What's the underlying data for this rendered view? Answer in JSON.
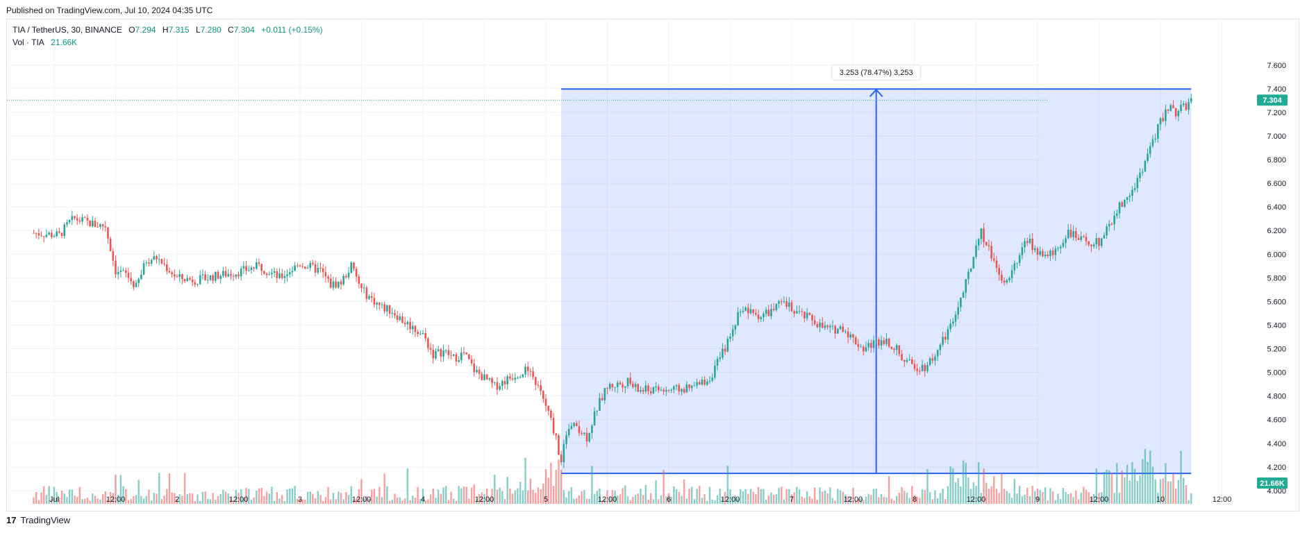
{
  "header": {
    "published": "Published on TradingView.com, Jul 10, 2024 04:35 UTC"
  },
  "legend": {
    "symbol": "TIA / TetherUS, 30, BINANCE",
    "o_label": "O",
    "o": "7.294",
    "h_label": "H",
    "h": "7.315",
    "l_label": "L",
    "l": "7.280",
    "c_label": "C",
    "c": "7.304",
    "change": "+0.011 (+0.15%)",
    "vol_label": "Vol · TIA",
    "vol": "21.66K"
  },
  "footer": {
    "brand": "TradingView",
    "logo_glyph": "17"
  },
  "colors": {
    "up": "#26a69a",
    "down": "#ef5350",
    "range_fill": "#2962ff",
    "range_line": "#2962ff",
    "last_price": "#22ab94"
  },
  "chart_data": {
    "type": "candlestick",
    "symbol": "TIA / TetherUS",
    "interval": "30",
    "exchange": "BINANCE",
    "ylim": [
      3.92,
      7.68
    ],
    "y_ticks": [
      "7.600",
      "7.400",
      "7.200",
      "7.000",
      "6.800",
      "6.600",
      "6.400",
      "6.200",
      "6.000",
      "5.800",
      "5.600",
      "5.400",
      "5.200",
      "5.000",
      "4.800",
      "4.600",
      "4.400",
      "4.200",
      "4.000"
    ],
    "x_ticks": [
      "Jul",
      "12:00",
      "2",
      "12:00",
      "3",
      "12:00",
      "4",
      "12:00",
      "5",
      "12:00",
      "6",
      "12:00",
      "7",
      "12:00",
      "8",
      "12:00",
      "9",
      "12:00",
      "10",
      "12:00"
    ],
    "last_price": "7.304",
    "last_volume": "21.66K",
    "price_range_measure": {
      "label": "3.253 (78.47%) 3,253",
      "from_price": 4.145,
      "to_price": 7.398,
      "from_x": "Jul 5 03:00",
      "to_x": "Jul 10 06:00"
    },
    "close_path": [
      [
        "Jun 30 20:00",
        6.18
      ],
      [
        "Jul 1 01:00",
        6.16
      ],
      [
        "Jul 1 03:00",
        6.27
      ],
      [
        "Jul 1 04:00",
        6.3
      ],
      [
        "Jul 1 08:00",
        6.25
      ],
      [
        "Jul 1 10:00",
        6.24
      ],
      [
        "Jul 1 12:00",
        5.86
      ],
      [
        "Jul 1 14:00",
        5.83
      ],
      [
        "Jul 1 16:00",
        5.72
      ],
      [
        "Jul 1 18:00",
        5.95
      ],
      [
        "Jul 1 20:00",
        5.97
      ],
      [
        "Jul 2 00:00",
        5.8
      ],
      [
        "Jul 2 04:00",
        5.78
      ],
      [
        "Jul 2 08:00",
        5.82
      ],
      [
        "Jul 2 12:00",
        5.85
      ],
      [
        "Jul 2 16:00",
        5.9
      ],
      [
        "Jul 2 20:00",
        5.8
      ],
      [
        "Jul 3 00:00",
        5.92
      ],
      [
        "Jul 3 04:00",
        5.86
      ],
      [
        "Jul 3 06:00",
        5.74
      ],
      [
        "Jul 3 08:00",
        5.76
      ],
      [
        "Jul 3 10:00",
        5.9
      ],
      [
        "Jul 3 12:00",
        5.7
      ],
      [
        "Jul 3 14:00",
        5.62
      ],
      [
        "Jul 3 16:00",
        5.55
      ],
      [
        "Jul 3 18:00",
        5.52
      ],
      [
        "Jul 3 20:00",
        5.44
      ],
      [
        "Jul 4 00:00",
        5.32
      ],
      [
        "Jul 4 02:00",
        5.15
      ],
      [
        "Jul 4 04:00",
        5.18
      ],
      [
        "Jul 4 06:00",
        5.12
      ],
      [
        "Jul 4 08:00",
        5.16
      ],
      [
        "Jul 4 10:00",
        5.02
      ],
      [
        "Jul 4 12:00",
        4.95
      ],
      [
        "Jul 4 14:00",
        4.88
      ],
      [
        "Jul 4 16:00",
        4.93
      ],
      [
        "Jul 4 18:00",
        4.98
      ],
      [
        "Jul 4 20:00",
        5.02
      ],
      [
        "Jul 4 22:00",
        4.92
      ],
      [
        "Jul 5 00:00",
        4.72
      ],
      [
        "Jul 5 02:00",
        4.45
      ],
      [
        "Jul 5 03:00",
        4.22
      ],
      [
        "Jul 5 04:00",
        4.5
      ],
      [
        "Jul 5 06:00",
        4.55
      ],
      [
        "Jul 5 08:00",
        4.45
      ],
      [
        "Jul 5 10:00",
        4.7
      ],
      [
        "Jul 5 12:00",
        4.88
      ],
      [
        "Jul 5 14:00",
        4.9
      ],
      [
        "Jul 5 16:00",
        4.92
      ],
      [
        "Jul 5 18:00",
        4.85
      ],
      [
        "Jul 6 00:00",
        4.85
      ],
      [
        "Jul 6 04:00",
        4.86
      ],
      [
        "Jul 6 06:00",
        4.9
      ],
      [
        "Jul 6 08:00",
        4.95
      ],
      [
        "Jul 6 10:00",
        5.12
      ],
      [
        "Jul 6 12:00",
        5.3
      ],
      [
        "Jul 6 14:00",
        5.55
      ],
      [
        "Jul 6 16:00",
        5.5
      ],
      [
        "Jul 6 18:00",
        5.48
      ],
      [
        "Jul 6 20:00",
        5.52
      ],
      [
        "Jul 6 22:00",
        5.58
      ],
      [
        "Jul 7 00:00",
        5.55
      ],
      [
        "Jul 7 02:00",
        5.48
      ],
      [
        "Jul 7 04:00",
        5.45
      ],
      [
        "Jul 7 06:00",
        5.38
      ],
      [
        "Jul 7 08:00",
        5.36
      ],
      [
        "Jul 7 10:00",
        5.38
      ],
      [
        "Jul 7 12:00",
        5.28
      ],
      [
        "Jul 7 14:00",
        5.2
      ],
      [
        "Jul 7 16:00",
        5.25
      ],
      [
        "Jul 7 18:00",
        5.28
      ],
      [
        "Jul 7 20:00",
        5.22
      ],
      [
        "Jul 7 22:00",
        5.1
      ],
      [
        "Jul 8 00:00",
        5.05
      ],
      [
        "Jul 8 02:00",
        5.05
      ],
      [
        "Jul 8 04:00",
        5.15
      ],
      [
        "Jul 8 06:00",
        5.3
      ],
      [
        "Jul 8 08:00",
        5.5
      ],
      [
        "Jul 8 10:00",
        5.75
      ],
      [
        "Jul 8 12:00",
        6.05
      ],
      [
        "Jul 8 13:00",
        6.18
      ],
      [
        "Jul 8 14:00",
        6.1
      ],
      [
        "Jul 8 16:00",
        5.88
      ],
      [
        "Jul 8 18:00",
        5.75
      ],
      [
        "Jul 8 20:00",
        5.95
      ],
      [
        "Jul 8 22:00",
        6.12
      ],
      [
        "Jul 9 00:00",
        6.02
      ],
      [
        "Jul 9 02:00",
        5.98
      ],
      [
        "Jul 9 04:00",
        6.05
      ],
      [
        "Jul 9 06:00",
        6.2
      ],
      [
        "Jul 9 08:00",
        6.12
      ],
      [
        "Jul 9 10:00",
        6.1
      ],
      [
        "Jul 9 12:00",
        6.1
      ],
      [
        "Jul 9 14:00",
        6.25
      ],
      [
        "Jul 9 16:00",
        6.4
      ],
      [
        "Jul 9 18:00",
        6.5
      ],
      [
        "Jul 9 20:00",
        6.68
      ],
      [
        "Jul 9 22:00",
        6.9
      ],
      [
        "Jul 10 00:00",
        7.12
      ],
      [
        "Jul 10 01:00",
        7.2
      ],
      [
        "Jul 10 02:00",
        7.28
      ],
      [
        "Jul 10 03:00",
        7.2
      ],
      [
        "Jul 10 05:00",
        7.25
      ],
      [
        "Jul 10 06:00",
        7.304
      ]
    ],
    "volume_peaks": [
      [
        "Jul 5 00:00",
        "high"
      ],
      [
        "Jul 8 12:00",
        "high"
      ],
      [
        "Jul 9 18:00",
        "high"
      ],
      [
        "Jul 10 00:00",
        "high"
      ]
    ]
  }
}
